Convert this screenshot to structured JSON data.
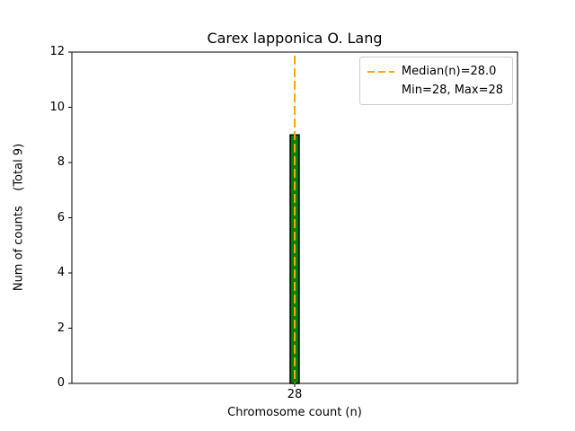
{
  "title": "Carex lapponica O. Lang",
  "xlabel": "Chromosome count (n)",
  "ylabel": "Num of counts    (Total 9)",
  "legend": {
    "median_label": "Median(n)=28.0",
    "minmax_label": "Min=28, Max=28"
  },
  "colors": {
    "bar_fill": "#008000",
    "bar_edge": "#000000",
    "median_line": "#FFA500",
    "axis": "#000000",
    "legend_border": "#cccccc"
  },
  "chart_data": {
    "type": "bar",
    "title": "Carex lapponica O. Lang",
    "xlabel": "Chromosome count (n)",
    "ylabel": "Num of counts    (Total 9)",
    "categories": [
      "28"
    ],
    "values": [
      9
    ],
    "ylim": [
      0,
      12
    ],
    "yticks": [
      0,
      2,
      4,
      6,
      8,
      10,
      12
    ],
    "median": 28.0,
    "min": 28,
    "max": 28,
    "total_counts": 9,
    "grid": false,
    "legend_position": "upper right"
  }
}
